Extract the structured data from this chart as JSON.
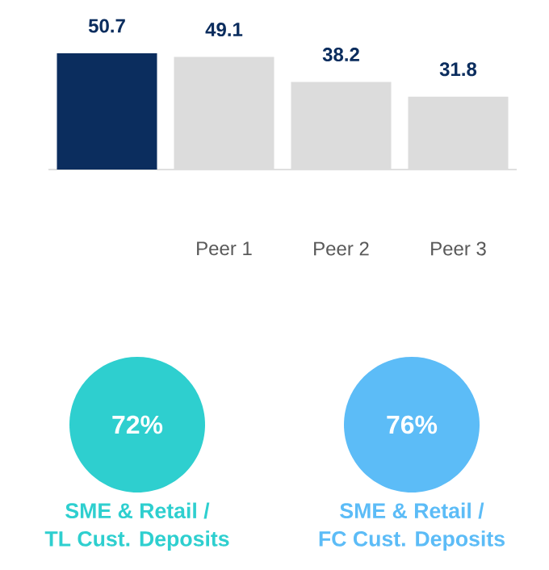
{
  "chart_data": [
    {
      "type": "bar",
      "categories": [
        null,
        "Peer 1",
        "Peer 2",
        "Peer 3"
      ],
      "values": [
        50.7,
        49.1,
        38.2,
        31.8
      ],
      "colors": [
        "#0b2d5e",
        "#dcdcdc",
        "#dcdcdc",
        "#dcdcdc"
      ],
      "data_labels": true
    },
    {
      "type": "other",
      "categories": [
        "SME & Retail / TL Cust. Deposits",
        "SME & Retail / FC Cust. Deposits"
      ],
      "values": [
        72,
        76
      ],
      "value_labels": [
        "72%",
        "76%"
      ],
      "colors": [
        "#2ecfcf",
        "#5cbcf7"
      ]
    }
  ]
}
